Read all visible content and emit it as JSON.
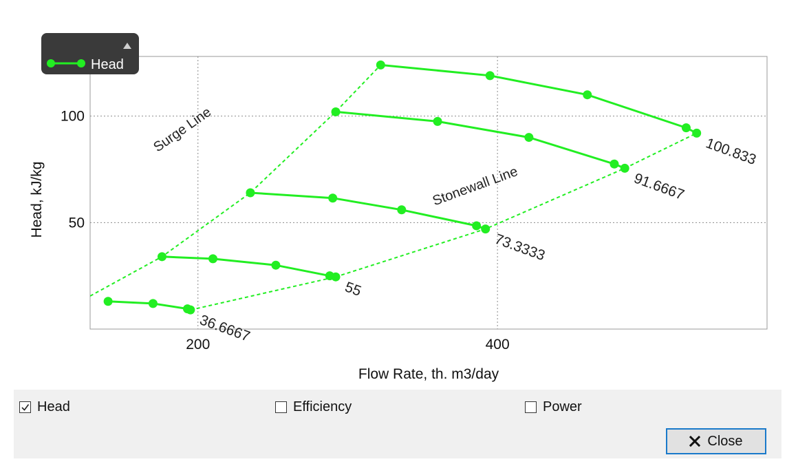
{
  "chart_data": {
    "type": "line",
    "xlabel": "Flow Rate, th. m3/day",
    "ylabel": "Head, kJ/kg",
    "xlim": [
      128,
      580
    ],
    "ylim": [
      0,
      128
    ],
    "x_ticks": [
      200,
      400
    ],
    "y_ticks": [
      50,
      100
    ],
    "grid": "dotted",
    "legend": {
      "position": "top-left",
      "entries": [
        "Head"
      ]
    },
    "series": [
      {
        "label": "36.6667",
        "points": [
          [
            140,
            13
          ],
          [
            170,
            12
          ],
          [
            193,
            9.5
          ],
          [
            195,
            9
          ]
        ]
      },
      {
        "label": "55",
        "points": [
          [
            176,
            34
          ],
          [
            210,
            33
          ],
          [
            252,
            30
          ],
          [
            288,
            25
          ],
          [
            292,
            24.5
          ]
        ]
      },
      {
        "label": "73.3333",
        "points": [
          [
            235,
            64
          ],
          [
            290,
            61.5
          ],
          [
            336,
            56
          ],
          [
            386,
            48.5
          ],
          [
            392,
            47
          ]
        ]
      },
      {
        "label": "91.6667",
        "points": [
          [
            292,
            102
          ],
          [
            360,
            97.5
          ],
          [
            421,
            90
          ],
          [
            478,
            77.5
          ],
          [
            485,
            75.5
          ]
        ]
      },
      {
        "label": "100.833",
        "points": [
          [
            322,
            124
          ],
          [
            395,
            119
          ],
          [
            460,
            110
          ],
          [
            526,
            94.5
          ],
          [
            533,
            92
          ]
        ]
      }
    ],
    "surge_line": {
      "label": "Surge Line",
      "points": [
        [
          128,
          15.5
        ],
        [
          176,
          34
        ],
        [
          235,
          64
        ],
        [
          292,
          102
        ],
        [
          322,
          124
        ]
      ]
    },
    "stonewall_line": {
      "label": "Stonewall Line",
      "points": [
        [
          195,
          9
        ],
        [
          292,
          24.5
        ],
        [
          392,
          47
        ],
        [
          485,
          75.5
        ],
        [
          533,
          92
        ]
      ]
    },
    "series_color": "#22ee22"
  },
  "controls": {
    "head": {
      "label": "Head",
      "checked": true
    },
    "efficiency": {
      "label": "Efficiency",
      "checked": false
    },
    "power": {
      "label": "Power",
      "checked": false
    },
    "close_label": "Close"
  }
}
